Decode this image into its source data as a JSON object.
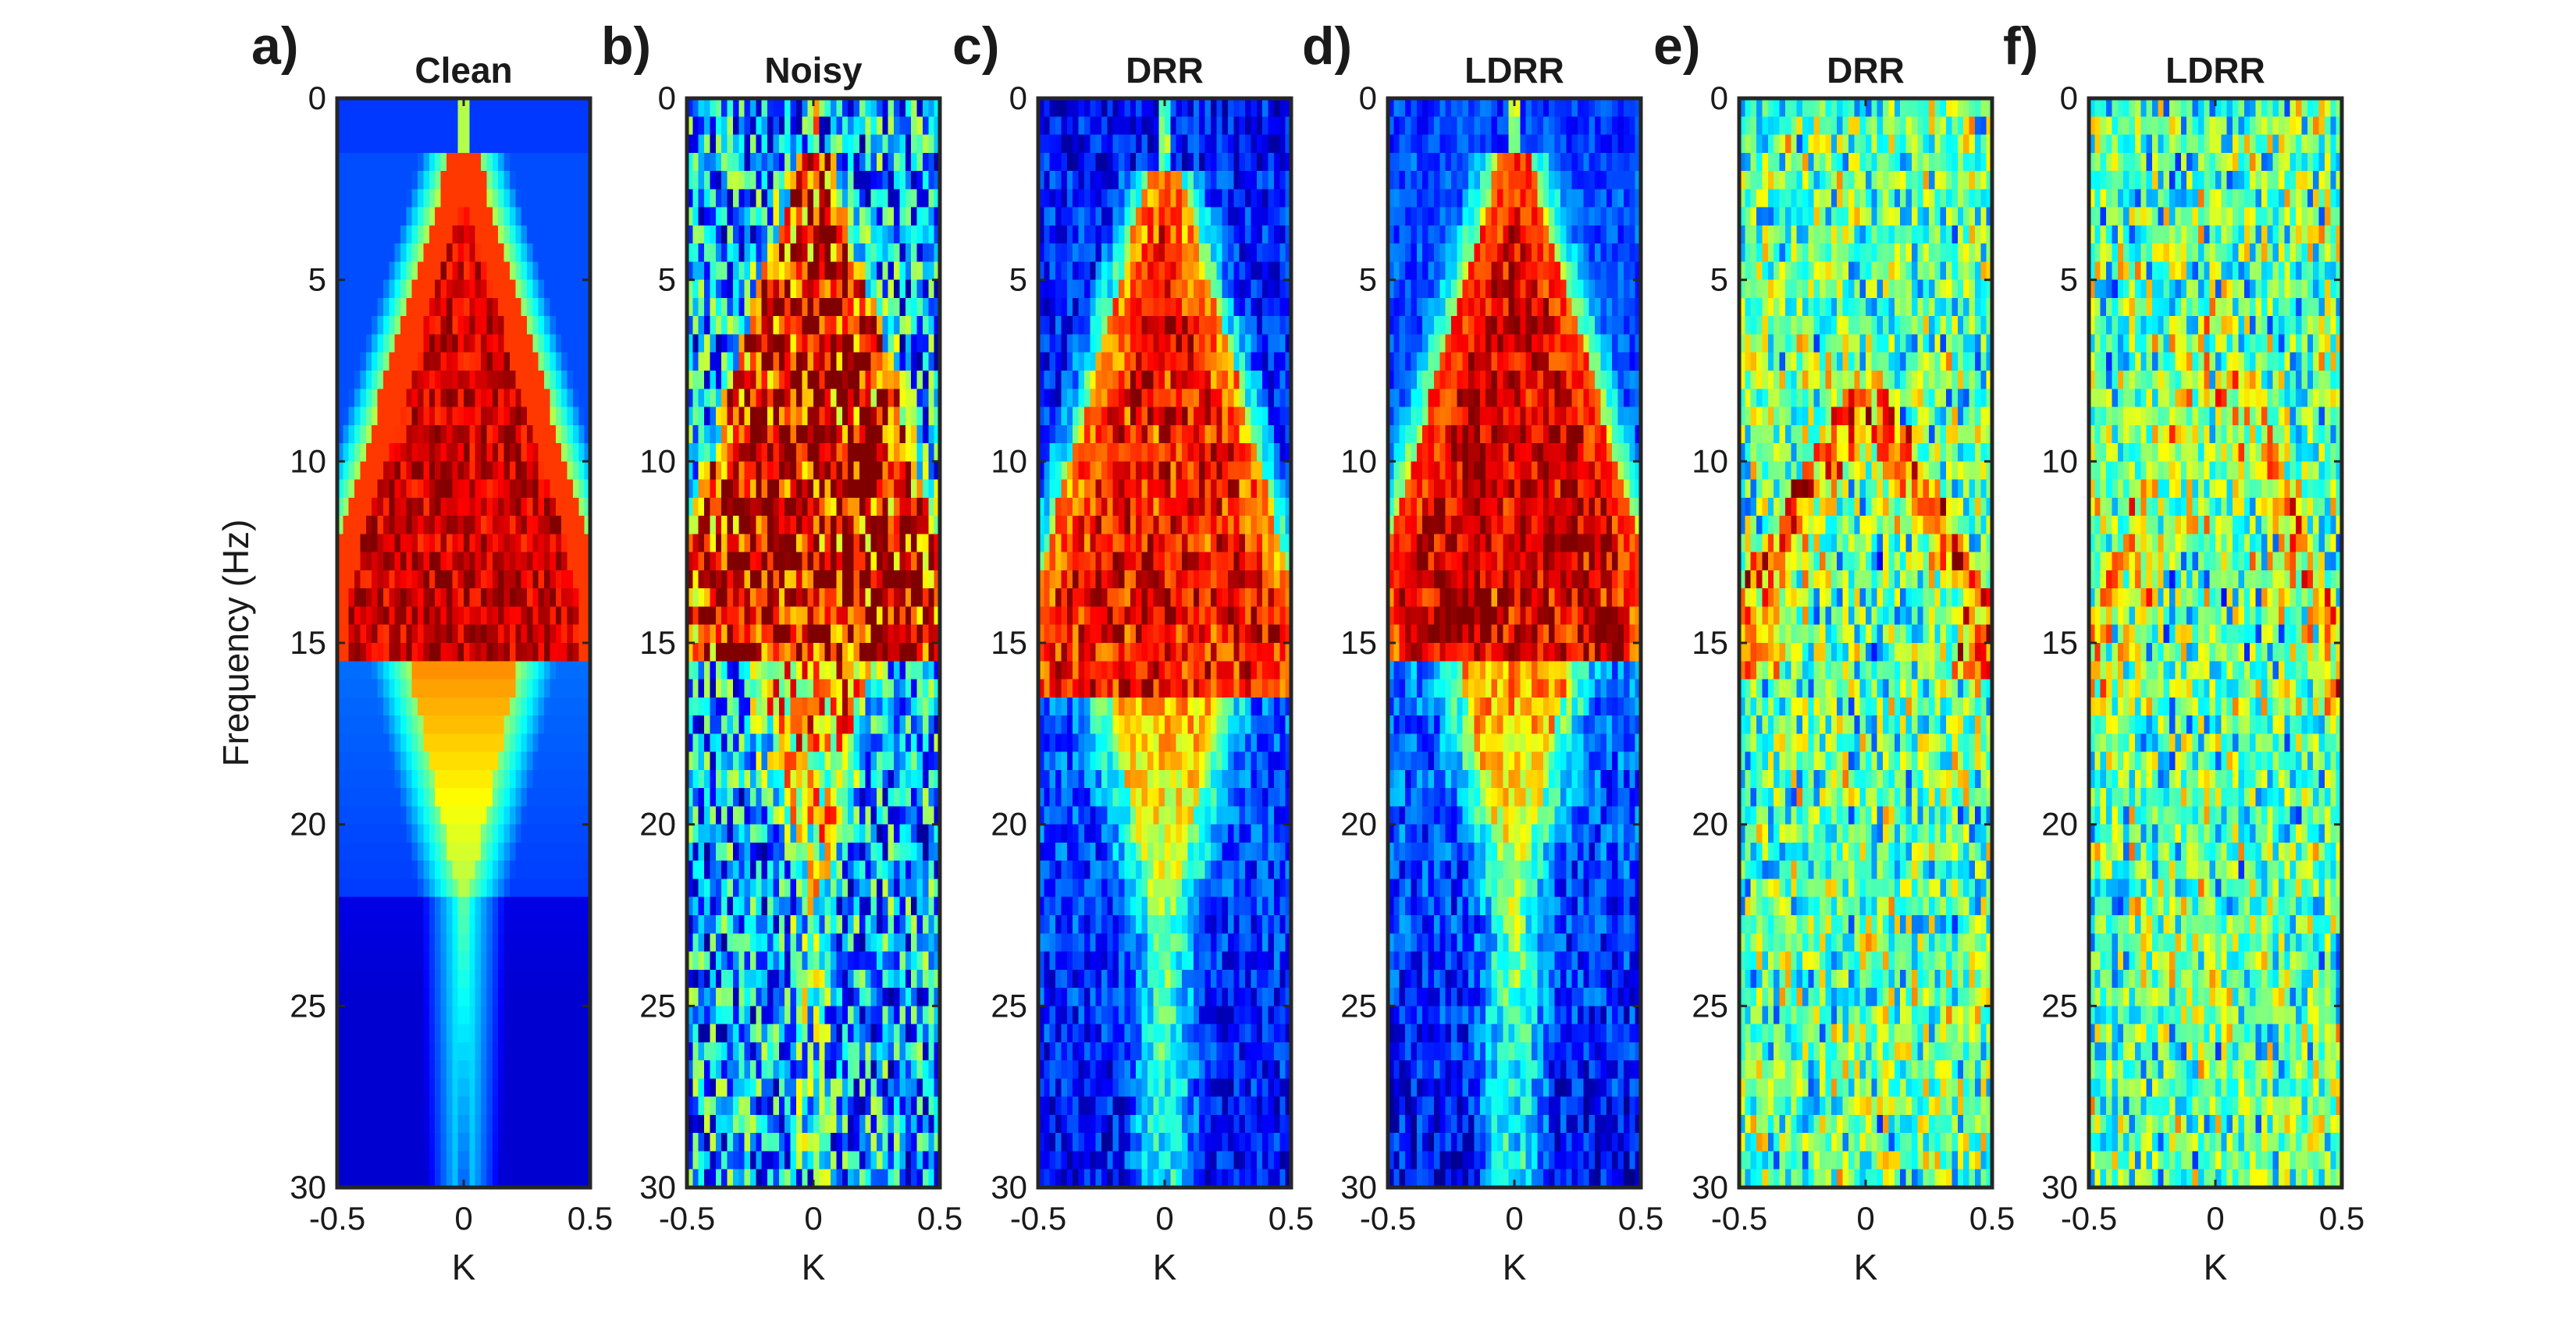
{
  "chart_data": {
    "type": "heatmap",
    "colormap": "jet",
    "shared_ylabel": "Frequency (Hz)",
    "ylim": [
      0,
      30
    ],
    "xlim": [
      -0.5,
      0.5
    ],
    "y_ticks": [
      0,
      5,
      10,
      15,
      20,
      25,
      30
    ],
    "y_tick_labels": [
      "0",
      "5",
      "10",
      "15",
      "20",
      "25",
      "30"
    ],
    "x_ticks": [
      -0.5,
      0,
      0.5
    ],
    "x_tick_labels": [
      "-0.5",
      "0",
      "0.5"
    ],
    "y_reversed": true,
    "panels": [
      {
        "letter": "a)",
        "title": "Clean",
        "xlabel": "K",
        "pattern": "clean",
        "seed": 11,
        "noise": 0.06,
        "apex_hz": 1.5,
        "edge_hz": 13.5,
        "lobe_end_hz": 30
      },
      {
        "letter": "b)",
        "title": "Noisy",
        "xlabel": "K",
        "pattern": "noisy",
        "seed": 23,
        "noise": 0.55,
        "apex_hz": 1.5,
        "edge_hz": 13.5,
        "lobe_end_hz": 30
      },
      {
        "letter": "c)",
        "title": "DRR",
        "xlabel": "K",
        "pattern": "drr",
        "seed": 37,
        "noise": 0.22,
        "apex_hz": 1.8,
        "edge_hz": 14.5,
        "lobe_end_hz": 30
      },
      {
        "letter": "d)",
        "title": "LDRR",
        "xlabel": "K",
        "pattern": "ldrr",
        "seed": 41,
        "noise": 0.3,
        "apex_hz": 1.5,
        "edge_hz": 13.5,
        "lobe_end_hz": 30
      },
      {
        "letter": "e)",
        "title": "DRR",
        "xlabel": "K",
        "pattern": "residual_drr",
        "seed": 53,
        "noise": 0.55,
        "apex_hz": 7.5,
        "edge_hz": 14,
        "lobe_end_hz": 16
      },
      {
        "letter": "f)",
        "title": "LDRR",
        "xlabel": "K",
        "pattern": "residual_ldrr",
        "seed": 67,
        "noise": 0.55,
        "apex_hz": 5.5,
        "edge_hz": 15,
        "lobe_end_hz": 17
      }
    ]
  }
}
